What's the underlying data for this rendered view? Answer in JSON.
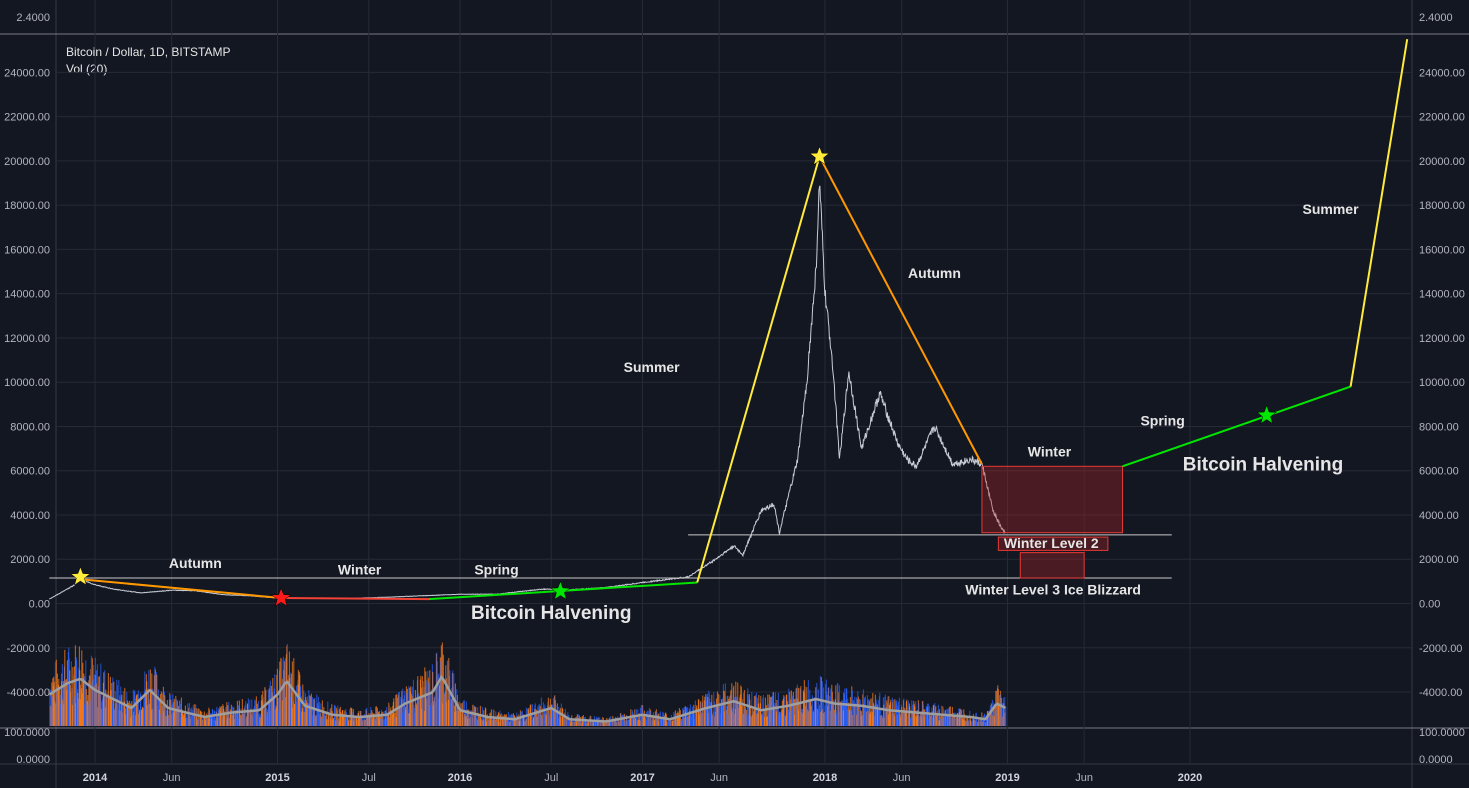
{
  "header": {
    "symbol_line": "Bitcoin / Dollar, 1D, BITSTAMP",
    "volume_line": "Vol (20)"
  },
  "chart_data": {
    "type": "line",
    "title": "Bitcoin / Dollar, 1D, BITSTAMP",
    "y_axis": {
      "ylim": [
        -5000,
        25000
      ],
      "ticks": [
        "24000.00",
        "22000.00",
        "20000.00",
        "18000.00",
        "16000.00",
        "14000.00",
        "12000.00",
        "10000.00",
        "8000.00",
        "6000.00",
        "4000.00",
        "2000.00",
        "0.00",
        "-2000.00",
        "-4000.00"
      ],
      "tick_values": [
        24000,
        22000,
        20000,
        18000,
        16000,
        14000,
        12000,
        10000,
        8000,
        6000,
        4000,
        2000,
        0,
        -2000,
        -4000
      ],
      "top_pane_label": "2.4000",
      "volume_pane_labels": [
        "100.0000",
        "0.0000"
      ]
    },
    "x_axis": {
      "ticks": [
        {
          "label": "2014",
          "t": 2014.0,
          "bold": true
        },
        {
          "label": "Jun",
          "t": 2014.42,
          "bold": false
        },
        {
          "label": "2015",
          "t": 2015.0,
          "bold": true
        },
        {
          "label": "Jul",
          "t": 2015.5,
          "bold": false
        },
        {
          "label": "2016",
          "t": 2016.0,
          "bold": true
        },
        {
          "label": "Jul",
          "t": 2016.5,
          "bold": false
        },
        {
          "label": "2017",
          "t": 2017.0,
          "bold": true
        },
        {
          "label": "Jun",
          "t": 2017.42,
          "bold": false
        },
        {
          "label": "2018",
          "t": 2018.0,
          "bold": true
        },
        {
          "label": "Jun",
          "t": 2018.42,
          "bold": false
        },
        {
          "label": "2019",
          "t": 2019.0,
          "bold": true
        },
        {
          "label": "Jun",
          "t": 2019.42,
          "bold": false
        },
        {
          "label": "2020",
          "t": 2020.0,
          "bold": true
        }
      ]
    },
    "price_series": [
      [
        2013.75,
        200
      ],
      [
        2013.88,
        800
      ],
      [
        2013.92,
        1100
      ],
      [
        2014.0,
        850
      ],
      [
        2014.1,
        650
      ],
      [
        2014.25,
        480
      ],
      [
        2014.42,
        600
      ],
      [
        2014.55,
        580
      ],
      [
        2014.7,
        400
      ],
      [
        2014.85,
        350
      ],
      [
        2015.0,
        250
      ],
      [
        2015.2,
        240
      ],
      [
        2015.4,
        230
      ],
      [
        2015.55,
        270
      ],
      [
        2015.8,
        350
      ],
      [
        2016.0,
        420
      ],
      [
        2016.2,
        420
      ],
      [
        2016.45,
        650
      ],
      [
        2016.6,
        620
      ],
      [
        2016.8,
        720
      ],
      [
        2017.0,
        950
      ],
      [
        2017.15,
        1100
      ],
      [
        2017.25,
        1200
      ],
      [
        2017.4,
        2000
      ],
      [
        2017.5,
        2600
      ],
      [
        2017.55,
        2200
      ],
      [
        2017.65,
        4200
      ],
      [
        2017.72,
        4500
      ],
      [
        2017.75,
        3200
      ],
      [
        2017.85,
        6500
      ],
      [
        2017.9,
        10000
      ],
      [
        2017.95,
        15000
      ],
      [
        2017.97,
        19000
      ],
      [
        2018.0,
        14000
      ],
      [
        2018.04,
        11000
      ],
      [
        2018.08,
        6500
      ],
      [
        2018.13,
        10500
      ],
      [
        2018.2,
        7000
      ],
      [
        2018.3,
        9500
      ],
      [
        2018.4,
        7200
      ],
      [
        2018.45,
        6500
      ],
      [
        2018.5,
        6200
      ],
      [
        2018.6,
        8000
      ],
      [
        2018.7,
        6300
      ],
      [
        2018.8,
        6500
      ],
      [
        2018.86,
        6300
      ],
      [
        2018.92,
        4200
      ],
      [
        2018.96,
        3500
      ],
      [
        2018.99,
        3100
      ]
    ],
    "volume_series": [
      [
        2013.75,
        1.4
      ],
      [
        2013.85,
        1.9
      ],
      [
        2013.92,
        2.1
      ],
      [
        2014.0,
        1.6
      ],
      [
        2014.1,
        1.2
      ],
      [
        2014.2,
        0.8
      ],
      [
        2014.3,
        1.6
      ],
      [
        2014.4,
        0.8
      ],
      [
        2014.5,
        0.6
      ],
      [
        2014.6,
        0.4
      ],
      [
        2014.75,
        0.6
      ],
      [
        2014.9,
        0.7
      ],
      [
        2015.0,
        1.4
      ],
      [
        2015.05,
        2.0
      ],
      [
        2015.15,
        0.9
      ],
      [
        2015.3,
        0.5
      ],
      [
        2015.45,
        0.4
      ],
      [
        2015.6,
        0.5
      ],
      [
        2015.7,
        1.0
      ],
      [
        2015.85,
        1.5
      ],
      [
        2015.9,
        2.2
      ],
      [
        2016.0,
        0.7
      ],
      [
        2016.15,
        0.4
      ],
      [
        2016.3,
        0.3
      ],
      [
        2016.5,
        0.8
      ],
      [
        2016.6,
        0.3
      ],
      [
        2016.8,
        0.2
      ],
      [
        2017.0,
        0.5
      ],
      [
        2017.15,
        0.3
      ],
      [
        2017.35,
        0.8
      ],
      [
        2017.5,
        1.1
      ],
      [
        2017.65,
        0.7
      ],
      [
        2017.8,
        0.9
      ],
      [
        2017.95,
        1.2
      ],
      [
        2018.05,
        1.0
      ],
      [
        2018.2,
        0.9
      ],
      [
        2018.35,
        0.7
      ],
      [
        2018.5,
        0.6
      ],
      [
        2018.65,
        0.5
      ],
      [
        2018.8,
        0.4
      ],
      [
        2018.88,
        0.3
      ],
      [
        2018.94,
        1.0
      ],
      [
        2018.99,
        0.8
      ]
    ],
    "volume_max": 3.0,
    "cycle_lines": [
      {
        "color": "#ff9800",
        "points": [
          [
            2013.92,
            1100
          ],
          [
            2015.02,
            250
          ]
        ]
      },
      {
        "color": "#f44336",
        "points": [
          [
            2015.02,
            250
          ],
          [
            2015.83,
            200
          ]
        ]
      },
      {
        "color": "#00e600",
        "points": [
          [
            2015.83,
            200
          ],
          [
            2017.3,
            950
          ]
        ]
      },
      {
        "color": "#ffeb3b",
        "points": [
          [
            2017.3,
            950
          ],
          [
            2017.97,
            20200
          ]
        ]
      },
      {
        "color": "#ff9800",
        "points": [
          [
            2017.97,
            20200
          ],
          [
            2018.86,
            6300
          ]
        ]
      },
      {
        "color": "#00e600",
        "points": [
          [
            2019.63,
            6200
          ],
          [
            2020.88,
            9800
          ]
        ]
      },
      {
        "color": "#ffeb3b",
        "points": [
          [
            2020.88,
            9800
          ],
          [
            2021.19,
            25500
          ]
        ]
      }
    ],
    "support_lines": [
      {
        "x0": 2017.25,
        "x1": 2019.9,
        "y": 3100
      },
      {
        "x0": 2013.75,
        "x1": 2019.9,
        "y": 1150
      }
    ],
    "boxes": [
      {
        "x0": 2018.86,
        "x1": 2019.63,
        "y0": 3200,
        "y1": 6200,
        "fill": true
      },
      {
        "x0": 2018.95,
        "x1": 2019.55,
        "y0": 2400,
        "y1": 3000,
        "fill": true
      },
      {
        "x0": 2019.07,
        "x1": 2019.42,
        "y0": 1150,
        "y1": 2300,
        "fill": true
      }
    ],
    "stars": [
      {
        "t": 2013.92,
        "v": 1200,
        "color": "#ffeb3b"
      },
      {
        "t": 2015.02,
        "v": 250,
        "color": "#ff1a1a"
      },
      {
        "t": 2016.55,
        "v": 550,
        "color": "#00e600"
      },
      {
        "t": 2017.97,
        "v": 20200,
        "color": "#ffeb3b"
      },
      {
        "t": 2020.42,
        "v": 8500,
        "color": "#00e600"
      }
    ],
    "annotations": [
      {
        "text": "Autumn",
        "t": 2014.55,
        "v": 1600,
        "size": 14
      },
      {
        "text": "Winter",
        "t": 2015.45,
        "v": 1300,
        "size": 14
      },
      {
        "text": "Spring",
        "t": 2016.2,
        "v": 1300,
        "size": 14
      },
      {
        "text": "Bitcoin Halvening",
        "t": 2016.5,
        "v": -700,
        "size": 19
      },
      {
        "text": "Summer",
        "t": 2017.05,
        "v": 10450,
        "size": 14
      },
      {
        "text": "Autumn",
        "t": 2018.6,
        "v": 14700,
        "size": 14
      },
      {
        "text": "Winter",
        "t": 2019.23,
        "v": 6650,
        "size": 14
      },
      {
        "text": "Winter Level 2",
        "t": 2019.24,
        "v": 2500,
        "size": 14
      },
      {
        "text": "Winter Level 3 Ice Blizzard",
        "t": 2019.25,
        "v": 400,
        "size": 14
      },
      {
        "text": "Spring",
        "t": 2019.85,
        "v": 8050,
        "size": 14
      },
      {
        "text": "Bitcoin Halvening",
        "t": 2020.4,
        "v": 6000,
        "size": 19
      },
      {
        "text": "Summer",
        "t": 2020.77,
        "v": 17600,
        "size": 14
      }
    ]
  }
}
